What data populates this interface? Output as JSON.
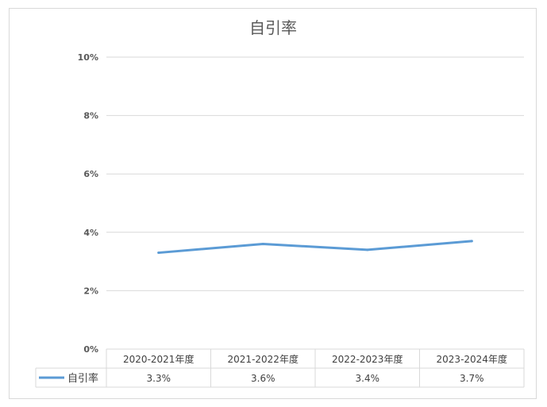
{
  "chart_data": {
    "type": "line",
    "title": "自引率",
    "categories": [
      "2020-2021年度",
      "2021-2022年度",
      "2022-2023年度",
      "2023-2024年度"
    ],
    "series": [
      {
        "name": "自引率",
        "values": [
          3.3,
          3.6,
          3.4,
          3.7
        ],
        "color": "#5b9bd5"
      }
    ],
    "ylim": [
      0,
      10
    ],
    "yticks": [
      0,
      2,
      4,
      6,
      8,
      10
    ],
    "ytick_labels": [
      "0%",
      "2%",
      "4%",
      "6%",
      "8%",
      "10%"
    ],
    "data_table": {
      "row_label": "自引率",
      "values": [
        "3.3%",
        "3.6%",
        "3.4%",
        "3.7%"
      ]
    },
    "grid": true,
    "legend": "data-table-key"
  }
}
